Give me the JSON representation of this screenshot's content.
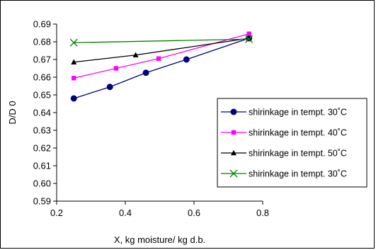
{
  "chart_data": {
    "type": "line",
    "xlabel": "X, kg moisture/ kg d.b.",
    "ylabel": "D/D 0",
    "xlim": [
      0.2,
      0.8
    ],
    "ylim": [
      0.59,
      0.69
    ],
    "xticks": [
      "0.2",
      "0.4",
      "0.6",
      "0.8"
    ],
    "yticks": [
      "0.59",
      "0.60",
      "0.61",
      "0.62",
      "0.63",
      "0.64",
      "0.65",
      "0.66",
      "0.67",
      "0.68",
      "0.69"
    ],
    "grid": false,
    "legend_position": "right",
    "series": [
      {
        "name": "shirinkage in tempt. 30˚C",
        "color": "#00007f",
        "marker": "circle",
        "x": [
          0.25,
          0.355,
          0.46,
          0.578,
          0.76
        ],
        "y": [
          0.648,
          0.6545,
          0.6625,
          0.67,
          0.682
        ]
      },
      {
        "name": "shirinkage in tempt. 40˚C",
        "color": "#ff00ff",
        "marker": "square",
        "x": [
          0.25,
          0.373,
          0.497,
          0.76
        ],
        "y": [
          0.6595,
          0.665,
          0.6705,
          0.6845
        ]
      },
      {
        "name": "shirinkage in tempt. 50˚C",
        "color": "#000000",
        "marker": "triangle",
        "x": [
          0.25,
          0.43,
          0.76
        ],
        "y": [
          0.6685,
          0.6725,
          0.682
        ]
      },
      {
        "name": "shirinkage in tempt. 30˚C",
        "color": "#008000",
        "marker": "x",
        "x": [
          0.25,
          0.76
        ],
        "y": [
          0.6795,
          0.6815
        ]
      }
    ]
  }
}
